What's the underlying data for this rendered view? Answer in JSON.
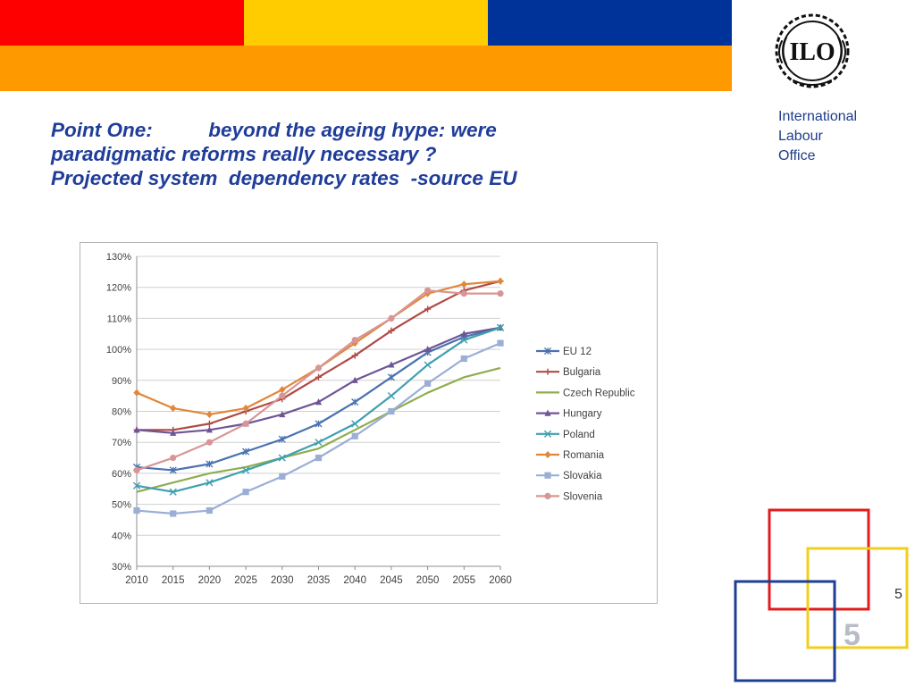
{
  "slide": {
    "title_lines": [
      "Point One:          beyond the ageing hype: were",
      "paradigmatic reforms really necessary ?",
      "Projected system  dependency rates  -source EU"
    ],
    "org_name_lines": [
      "International",
      "Labour",
      "Office"
    ],
    "logo_text": "ILO",
    "page_number": "5",
    "page_number_large": "5",
    "colors": {
      "band_red": "#ff0000",
      "band_yellow": "#ffcc00",
      "band_blue": "#003399",
      "band_orange": "#ff9900",
      "title": "#1f3d99",
      "square_red": "#e01c1c",
      "square_yellow": "#f2cf1d",
      "square_blue": "#1c3f94"
    }
  },
  "chart_data": {
    "type": "line",
    "title": "",
    "xlabel": "",
    "ylabel": "",
    "x": [
      "2010",
      "2015",
      "2020",
      "2025",
      "2030",
      "2035",
      "2040",
      "2045",
      "2050",
      "2055",
      "2060"
    ],
    "ylim": [
      30,
      130
    ],
    "yticks": [
      30,
      40,
      50,
      60,
      70,
      80,
      90,
      100,
      110,
      120,
      130
    ],
    "ytick_labels": [
      "30%",
      "40%",
      "50%",
      "60%",
      "70%",
      "80%",
      "90%",
      "100%",
      "110%",
      "120%",
      "130%"
    ],
    "grid": true,
    "legend_position": "right",
    "series": [
      {
        "name": "EU 12",
        "color": "#4a72b0",
        "marker": "cross",
        "values": [
          62,
          61,
          63,
          67,
          71,
          76,
          83,
          91,
          99,
          104,
          107
        ]
      },
      {
        "name": "Bulgaria",
        "color": "#b04a45",
        "marker": "plus",
        "values": [
          74,
          74,
          76,
          80,
          84,
          91,
          98,
          106,
          113,
          119,
          122
        ]
      },
      {
        "name": "Czech Republic",
        "color": "#8fad4e",
        "marker": "none",
        "values": [
          54,
          57,
          60,
          62,
          65,
          68,
          74,
          80,
          86,
          91,
          94
        ]
      },
      {
        "name": "Hungary",
        "color": "#6e5596",
        "marker": "triangle",
        "values": [
          74,
          73,
          74,
          76,
          79,
          83,
          90,
          95,
          100,
          105,
          107
        ]
      },
      {
        "name": "Poland",
        "color": "#3f9fb0",
        "marker": "x",
        "values": [
          56,
          54,
          57,
          61,
          65,
          70,
          76,
          85,
          95,
          103,
          107
        ]
      },
      {
        "name": "Romania",
        "color": "#e0883a",
        "marker": "diamond",
        "values": [
          86,
          81,
          79,
          81,
          87,
          94,
          102,
          110,
          118,
          121,
          122
        ]
      },
      {
        "name": "Slovakia",
        "color": "#9aaed6",
        "marker": "square",
        "values": [
          48,
          47,
          48,
          54,
          59,
          65,
          72,
          80,
          89,
          97,
          102
        ]
      },
      {
        "name": "Slovenia",
        "color": "#d99595",
        "marker": "circle",
        "values": [
          61,
          65,
          70,
          76,
          85,
          94,
          103,
          110,
          119,
          118,
          118
        ]
      }
    ]
  }
}
